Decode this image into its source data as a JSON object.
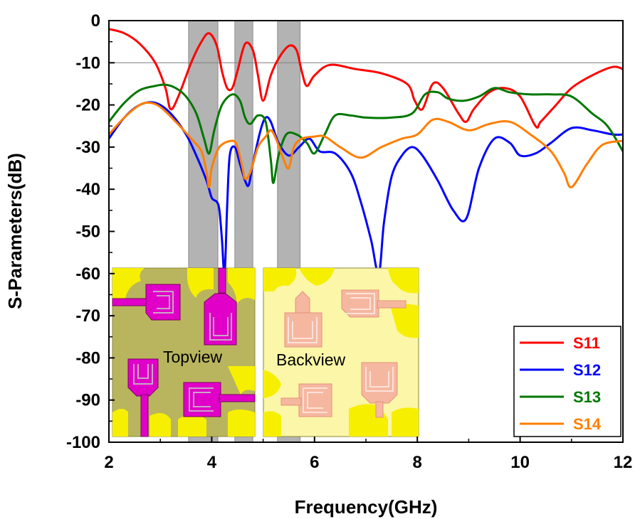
{
  "chart_data": {
    "type": "line",
    "xlabel": "Frequency(GHz)",
    "ylabel": "S-Parameters(dB)",
    "xlim": [
      2,
      12
    ],
    "ylim": [
      -100,
      0
    ],
    "xticks": [
      "2",
      "4",
      "6",
      "8",
      "10",
      "12"
    ],
    "yticks": [
      "0",
      "-10",
      "-20",
      "-30",
      "-40",
      "-50",
      "-60",
      "-70",
      "-80",
      "-90",
      "-100"
    ],
    "reference_line_y": -10,
    "shaded_bands": [
      [
        3.55,
        4.12
      ],
      [
        4.45,
        4.8
      ],
      [
        5.28,
        5.72
      ]
    ],
    "legend_position": "bottom-right",
    "inset_labels": [
      "Topview",
      "Backview"
    ],
    "series": [
      {
        "name": "S11",
        "color": "#ff0000",
        "x": [
          2,
          2.3,
          2.6,
          2.9,
          3.1,
          3.2,
          3.35,
          3.6,
          3.8,
          3.95,
          4.1,
          4.2,
          4.3,
          4.4,
          4.5,
          4.65,
          4.8,
          4.9,
          5.0,
          5.15,
          5.3,
          5.5,
          5.65,
          5.75,
          5.85,
          6.0,
          6.3,
          6.8,
          7.3,
          7.8,
          7.95,
          8.1,
          8.3,
          8.5,
          8.8,
          8.95,
          9.1,
          9.4,
          9.7,
          10.0,
          10.3,
          10.4,
          10.7,
          11.0,
          11.4,
          11.8,
          12
        ],
        "y": [
          -2,
          -3,
          -5.5,
          -10,
          -16,
          -21,
          -18,
          -10,
          -5,
          -3,
          -6,
          -12,
          -16,
          -16,
          -12,
          -5.5,
          -7,
          -13,
          -19,
          -13,
          -9,
          -6,
          -7,
          -12,
          -15.5,
          -13,
          -10.5,
          -11.5,
          -12.5,
          -15,
          -19,
          -21,
          -15,
          -16,
          -22,
          -24,
          -21,
          -17,
          -16,
          -18,
          -25,
          -24,
          -20,
          -16,
          -13,
          -11,
          -11.5
        ]
      },
      {
        "name": "S12",
        "color": "#0000ff",
        "x": [
          2,
          2.3,
          2.6,
          2.9,
          3.2,
          3.5,
          3.7,
          3.9,
          4.0,
          4.1,
          4.15,
          4.2,
          4.25,
          4.3,
          4.35,
          4.45,
          4.55,
          4.65,
          4.72,
          4.8,
          4.95,
          5.05,
          5.15,
          5.3,
          5.5,
          5.7,
          5.9,
          6.1,
          6.4,
          6.7,
          6.9,
          7.1,
          7.25,
          7.35,
          7.5,
          7.7,
          7.9,
          8.1,
          8.4,
          8.7,
          8.95,
          9.2,
          9.5,
          9.8,
          10.0,
          10.3,
          10.6,
          11.0,
          11.4,
          11.8,
          12
        ],
        "y": [
          -28,
          -23,
          -20,
          -19.5,
          -22,
          -27,
          -32,
          -38,
          -42,
          -43,
          -45,
          -52,
          -60,
          -44,
          -32,
          -30,
          -34,
          -38,
          -39,
          -34,
          -26,
          -23,
          -24,
          -29,
          -32,
          -30,
          -28,
          -31,
          -31.5,
          -36,
          -43,
          -52,
          -60,
          -48,
          -37,
          -32,
          -30,
          -32,
          -38,
          -45,
          -47,
          -35,
          -28,
          -29,
          -32,
          -31.5,
          -29,
          -25.5,
          -26,
          -27,
          -27
        ]
      },
      {
        "name": "S13",
        "color": "#007700",
        "x": [
          2,
          2.3,
          2.6,
          2.9,
          3.1,
          3.3,
          3.5,
          3.7,
          3.85,
          3.95,
          4.05,
          4.2,
          4.4,
          4.55,
          4.65,
          4.75,
          4.9,
          5.05,
          5.15,
          5.2,
          5.3,
          5.45,
          5.65,
          5.85,
          6.0,
          6.2,
          6.4,
          6.7,
          7.0,
          7.5,
          7.9,
          8.15,
          8.4,
          8.6,
          8.9,
          9.2,
          9.5,
          9.8,
          10.2,
          10.6,
          11.0,
          11.4,
          11.7,
          12
        ],
        "y": [
          -24,
          -19.5,
          -16.5,
          -15.5,
          -15.2,
          -16,
          -18,
          -22,
          -28,
          -31.5,
          -26,
          -20,
          -17.5,
          -19,
          -23,
          -24.5,
          -22.5,
          -24,
          -33,
          -38.5,
          -32,
          -27,
          -27,
          -29,
          -31.5,
          -27,
          -22.5,
          -22.5,
          -23,
          -23,
          -22,
          -17.5,
          -17,
          -18.5,
          -19,
          -18,
          -16,
          -17,
          -17.5,
          -17.5,
          -18,
          -22,
          -25,
          -31
        ]
      },
      {
        "name": "S14",
        "color": "#ff7f00",
        "x": [
          2,
          2.3,
          2.6,
          2.8,
          3.0,
          3.3,
          3.6,
          3.8,
          3.9,
          3.95,
          4.0,
          4.15,
          4.4,
          4.5,
          4.6,
          4.65,
          4.75,
          4.9,
          5.05,
          5.15,
          5.25,
          5.4,
          5.5,
          5.6,
          5.75,
          6.0,
          6.2,
          6.5,
          6.9,
          7.3,
          7.7,
          8.0,
          8.3,
          8.6,
          9.0,
          9.4,
          9.8,
          10.2,
          10.6,
          10.85,
          11.0,
          11.3,
          11.6,
          12
        ],
        "y": [
          -27,
          -23,
          -20,
          -19.5,
          -20.5,
          -24,
          -28,
          -31,
          -36,
          -39.5,
          -35,
          -30,
          -28.5,
          -30,
          -35,
          -37.5,
          -36,
          -30,
          -27.5,
          -26,
          -28,
          -33,
          -35,
          -30,
          -28,
          -27.5,
          -27.5,
          -30,
          -32.5,
          -30,
          -28,
          -27,
          -23.5,
          -24,
          -26,
          -24.5,
          -24,
          -27,
          -31,
          -36,
          -39.5,
          -34,
          -29.5,
          -28.5
        ]
      }
    ]
  }
}
